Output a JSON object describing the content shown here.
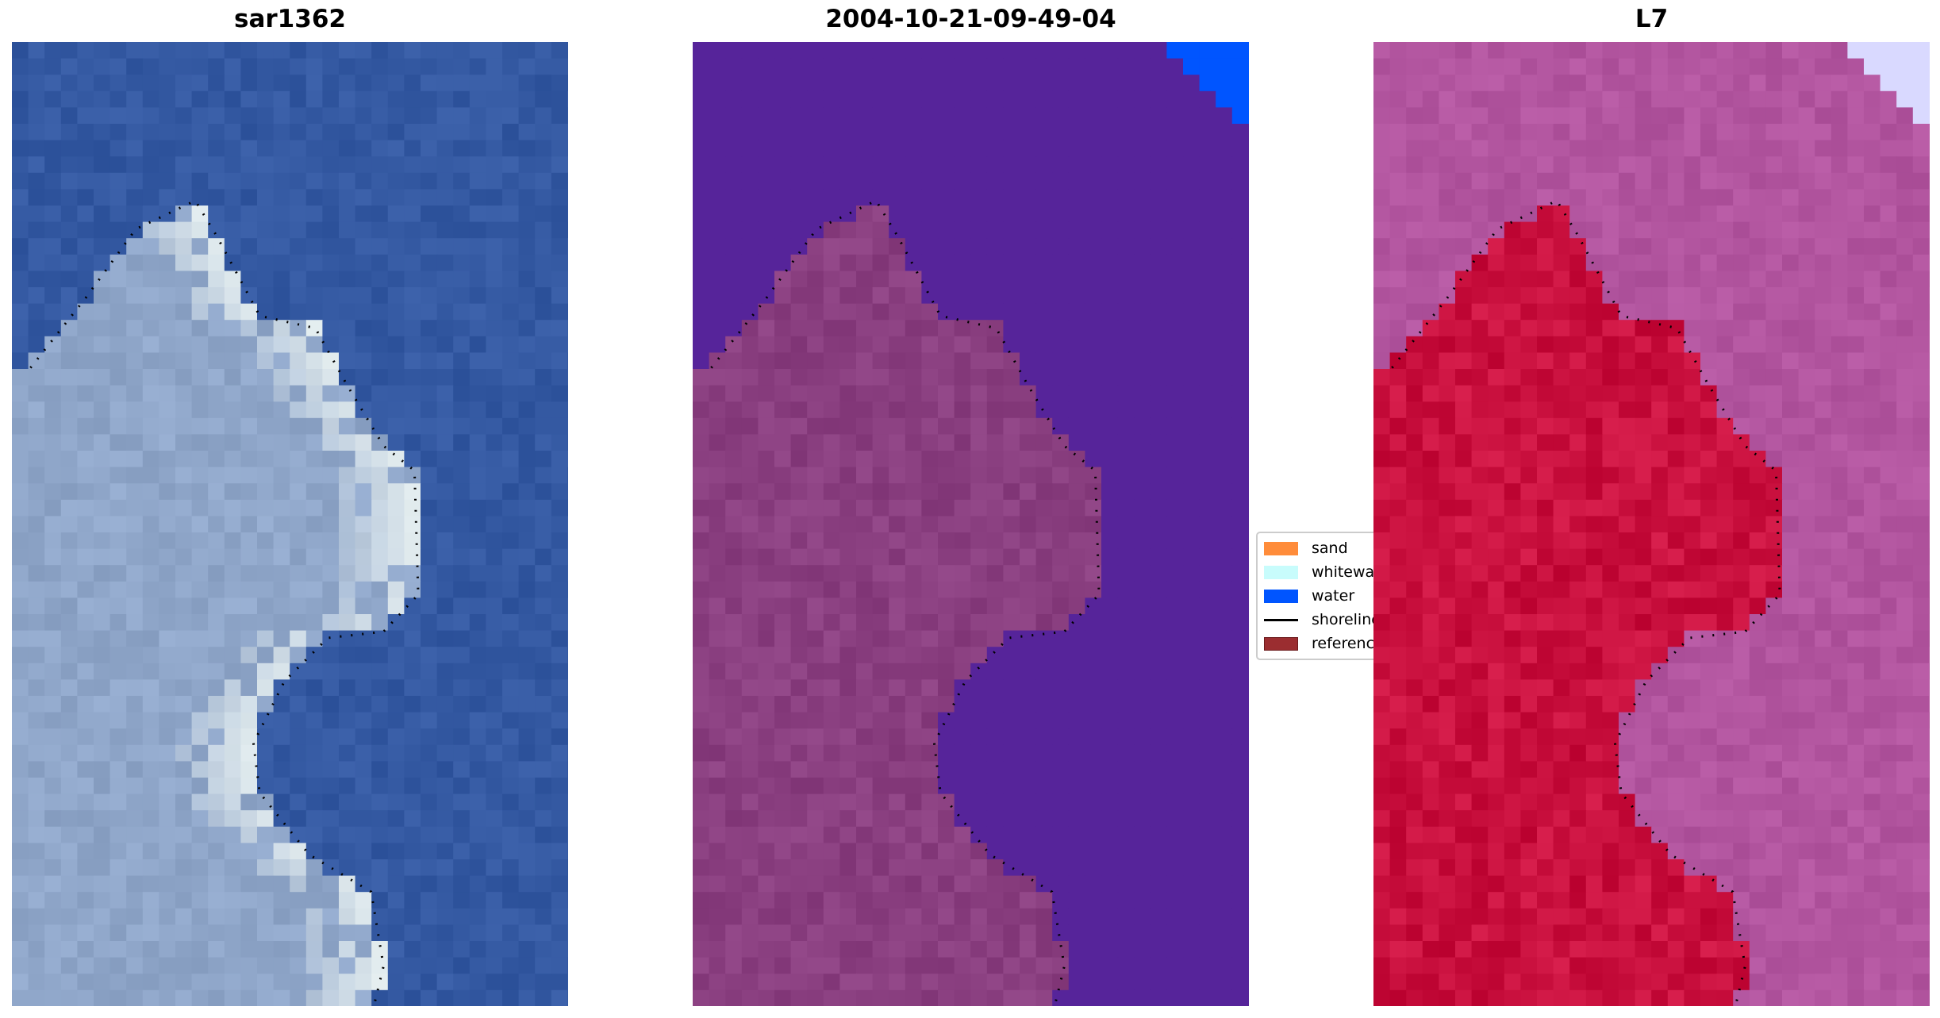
{
  "panels": [
    {
      "title": "sar1362",
      "water_color": "#3459a2",
      "land_color": "#8fa6c9",
      "bright_color": "#eef6f4"
    },
    {
      "title": "2004-10-21-09-49-04",
      "water_color": "#56249a",
      "land_color": "#8a3f80",
      "corner_color": "#0055ff"
    },
    {
      "title": "L7",
      "water_color": "#b2559f",
      "land_color": "#c9103e",
      "corner_color": "#d9d9ff"
    }
  ],
  "legend": {
    "items": [
      {
        "label": "sand",
        "color": "#ff8c3a",
        "kind": "patch"
      },
      {
        "label": "whitewater",
        "color": "#c8fcfc",
        "kind": "patch"
      },
      {
        "label": "water",
        "color": "#0055ff",
        "kind": "patch"
      },
      {
        "label": "shoreline",
        "color": "#000000",
        "kind": "line"
      },
      {
        "label": "reference",
        "color": "#9b2d30",
        "kind": "patch"
      }
    ]
  }
}
